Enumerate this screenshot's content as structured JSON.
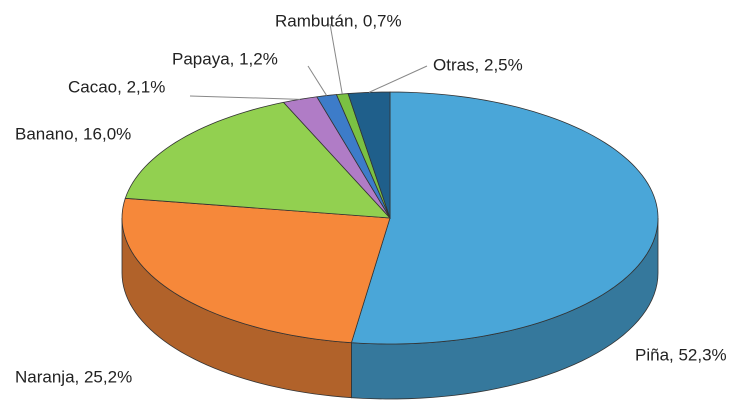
{
  "chart_data": {
    "type": "pie3d",
    "values": [
      52.3,
      25.2,
      16.0,
      2.1,
      1.2,
      0.7,
      2.5
    ],
    "value_labels": [
      "Piña, 52,3%",
      "Naranja, 25,2%",
      "Banano, 16,0%",
      "Cacao, 2,1%",
      "Papaya, 1,2%",
      "Rambután, 0,7%",
      "Otras, 2,5%"
    ],
    "colors": [
      "#4aa6d8",
      "#f6883a",
      "#92d050",
      "#b07cc6",
      "#3d7cc9",
      "#7ac143",
      "#1f5f8b"
    ]
  }
}
